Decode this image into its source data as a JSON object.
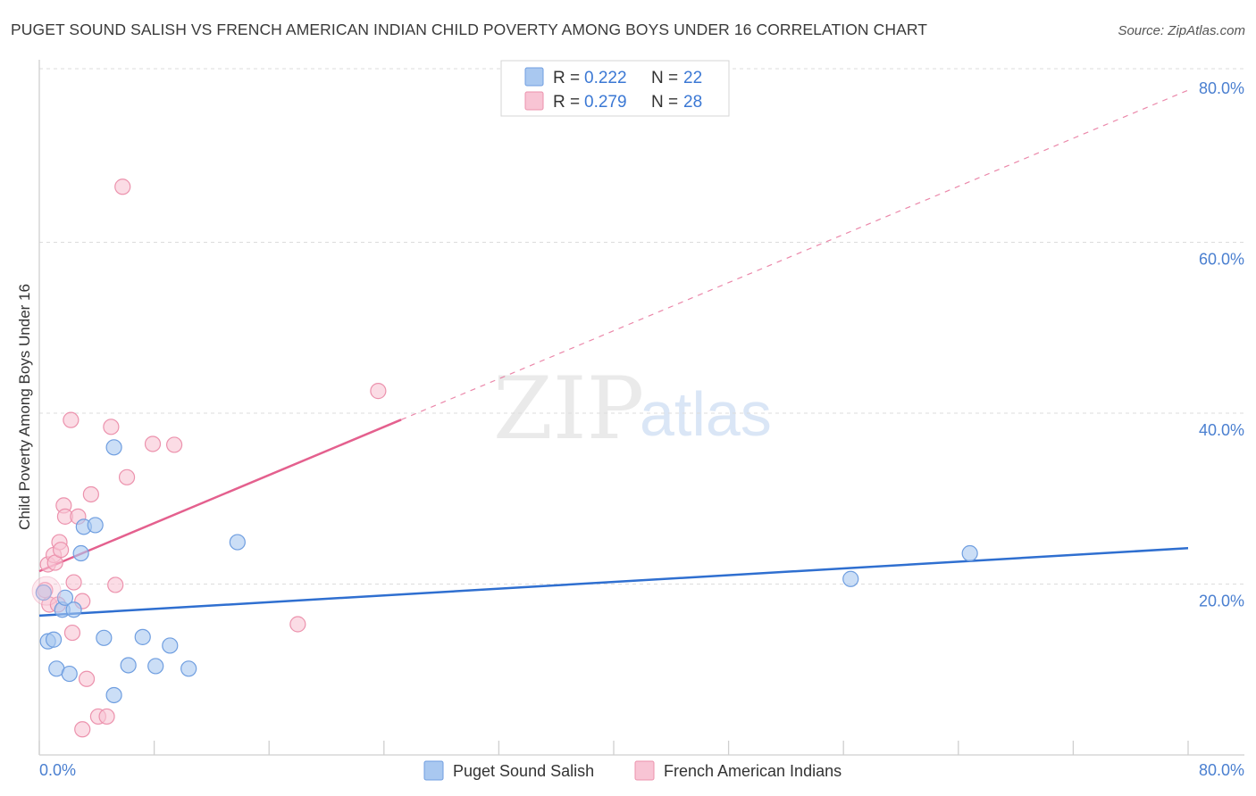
{
  "chart_data": {
    "type": "scatter",
    "title": "PUGET SOUND SALISH VS FRENCH AMERICAN INDIAN CHILD POVERTY AMONG BOYS UNDER 16 CORRELATION CHART",
    "source": "Source: ZipAtlas.com",
    "ylabel": "Child Poverty Among Boys Under 16",
    "xlabel": "",
    "xlim": [
      0,
      80
    ],
    "ylim": [
      0,
      80
    ],
    "x_tick_labels": [
      "0.0%",
      "80.0%"
    ],
    "y_ticks": [
      {
        "value": 20,
        "label": "20.0%"
      },
      {
        "value": 40,
        "label": "40.0%"
      },
      {
        "value": 60,
        "label": "60.0%"
      },
      {
        "value": 80,
        "label": "80.0%"
      }
    ],
    "watermark": {
      "zip": "ZIP",
      "atlas": "atlas"
    },
    "legend": [
      {
        "r_label": "R = ",
        "r_value": "0.222",
        "n_label": "N = ",
        "n_value": "22"
      },
      {
        "r_label": "R = ",
        "r_value": "0.279",
        "n_label": "N = ",
        "n_value": "28"
      }
    ],
    "series": [
      {
        "name": "Puget Sound Salish",
        "color": "#a9c8f0",
        "stroke": "#6f9ee0",
        "line_color": "#2f6fd0",
        "trend": {
          "x0": 0,
          "y0": 16.3,
          "x1": 80,
          "y1": 24.2,
          "dash_from": null
        },
        "points": [
          [
            0.3,
            19.0
          ],
          [
            0.6,
            13.3
          ],
          [
            1.0,
            13.5
          ],
          [
            1.2,
            10.1
          ],
          [
            1.6,
            17.0
          ],
          [
            1.8,
            18.4
          ],
          [
            2.1,
            9.5
          ],
          [
            2.4,
            17.0
          ],
          [
            2.9,
            23.6
          ],
          [
            3.1,
            26.7
          ],
          [
            3.9,
            26.9
          ],
          [
            4.5,
            13.7
          ],
          [
            5.2,
            7.0
          ],
          [
            5.2,
            36.0
          ],
          [
            6.2,
            10.5
          ],
          [
            7.2,
            13.8
          ],
          [
            8.1,
            10.4
          ],
          [
            9.1,
            12.8
          ],
          [
            10.4,
            10.1
          ],
          [
            13.8,
            24.9
          ],
          [
            56.5,
            20.6
          ],
          [
            64.8,
            23.6
          ]
        ]
      },
      {
        "name": "French American Indians",
        "color": "#f8c4d4",
        "stroke": "#ec92ad",
        "line_color": "#e4608e",
        "trend": {
          "x0": 0,
          "y0": 21.5,
          "x1": 80,
          "y1": 77.8,
          "dash_from": 25.2
        },
        "points": [
          [
            0.4,
            19.3
          ],
          [
            0.6,
            22.3
          ],
          [
            0.7,
            17.6
          ],
          [
            1.0,
            23.4
          ],
          [
            1.1,
            22.5
          ],
          [
            1.3,
            17.6
          ],
          [
            1.4,
            24.9
          ],
          [
            1.5,
            24.0
          ],
          [
            1.7,
            29.2
          ],
          [
            1.8,
            27.9
          ],
          [
            2.2,
            39.2
          ],
          [
            2.3,
            14.3
          ],
          [
            2.4,
            20.2
          ],
          [
            2.7,
            27.9
          ],
          [
            3.3,
            8.9
          ],
          [
            3.6,
            30.5
          ],
          [
            4.1,
            4.5
          ],
          [
            4.7,
            4.5
          ],
          [
            5.0,
            38.4
          ],
          [
            5.3,
            19.9
          ],
          [
            6.1,
            32.5
          ],
          [
            5.8,
            66.5
          ],
          [
            7.9,
            36.4
          ],
          [
            9.4,
            36.3
          ],
          [
            18.0,
            15.3
          ],
          [
            23.6,
            42.6
          ],
          [
            3.0,
            18.0
          ],
          [
            3.0,
            3.0
          ]
        ]
      }
    ]
  }
}
